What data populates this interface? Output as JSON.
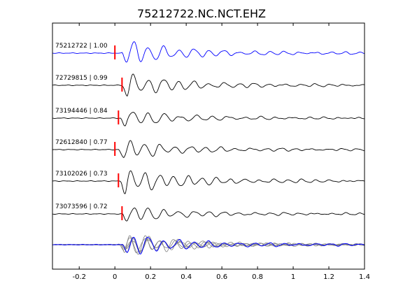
{
  "chart_data": {
    "type": "line",
    "title": "75212722.NC.NCT.EHZ",
    "xlabel": "",
    "ylabel": "",
    "xlim": [
      -0.35,
      1.4
    ],
    "xticks": [
      -0.2,
      0,
      0.2,
      0.4,
      0.6,
      0.8,
      1,
      1.2,
      1.4
    ],
    "xtick_labels": [
      "-0.2",
      "0",
      "0.2",
      "0.4",
      "0.6",
      "0.8",
      "1",
      "1.2",
      "1.4"
    ],
    "grid": false,
    "pick_marker_color": "#ff0000",
    "stack_color": "#808080",
    "series": [
      {
        "name": "75212722 | 1.00",
        "color": "#0000ff",
        "pick_time": 0.0,
        "onset": 0.04,
        "amp": 1.0,
        "period": 0.085
      },
      {
        "name": "72729815 | 0.99",
        "color": "#000000",
        "pick_time": 0.04,
        "onset": 0.04,
        "amp": 0.95,
        "period": 0.085
      },
      {
        "name": "73194446 | 0.84",
        "color": "#000000",
        "pick_time": 0.02,
        "onset": 0.03,
        "amp": 0.7,
        "period": 0.09
      },
      {
        "name": "72612840 | 0.77",
        "color": "#000000",
        "pick_time": 0.0,
        "onset": 0.02,
        "amp": 0.8,
        "period": 0.085
      },
      {
        "name": "73102026 | 0.73",
        "color": "#000000",
        "pick_time": 0.02,
        "onset": 0.03,
        "amp": 1.1,
        "period": 0.08
      },
      {
        "name": "73073596 | 0.72",
        "color": "#000000",
        "pick_time": 0.04,
        "onset": 0.04,
        "amp": 0.7,
        "period": 0.085
      }
    ]
  }
}
